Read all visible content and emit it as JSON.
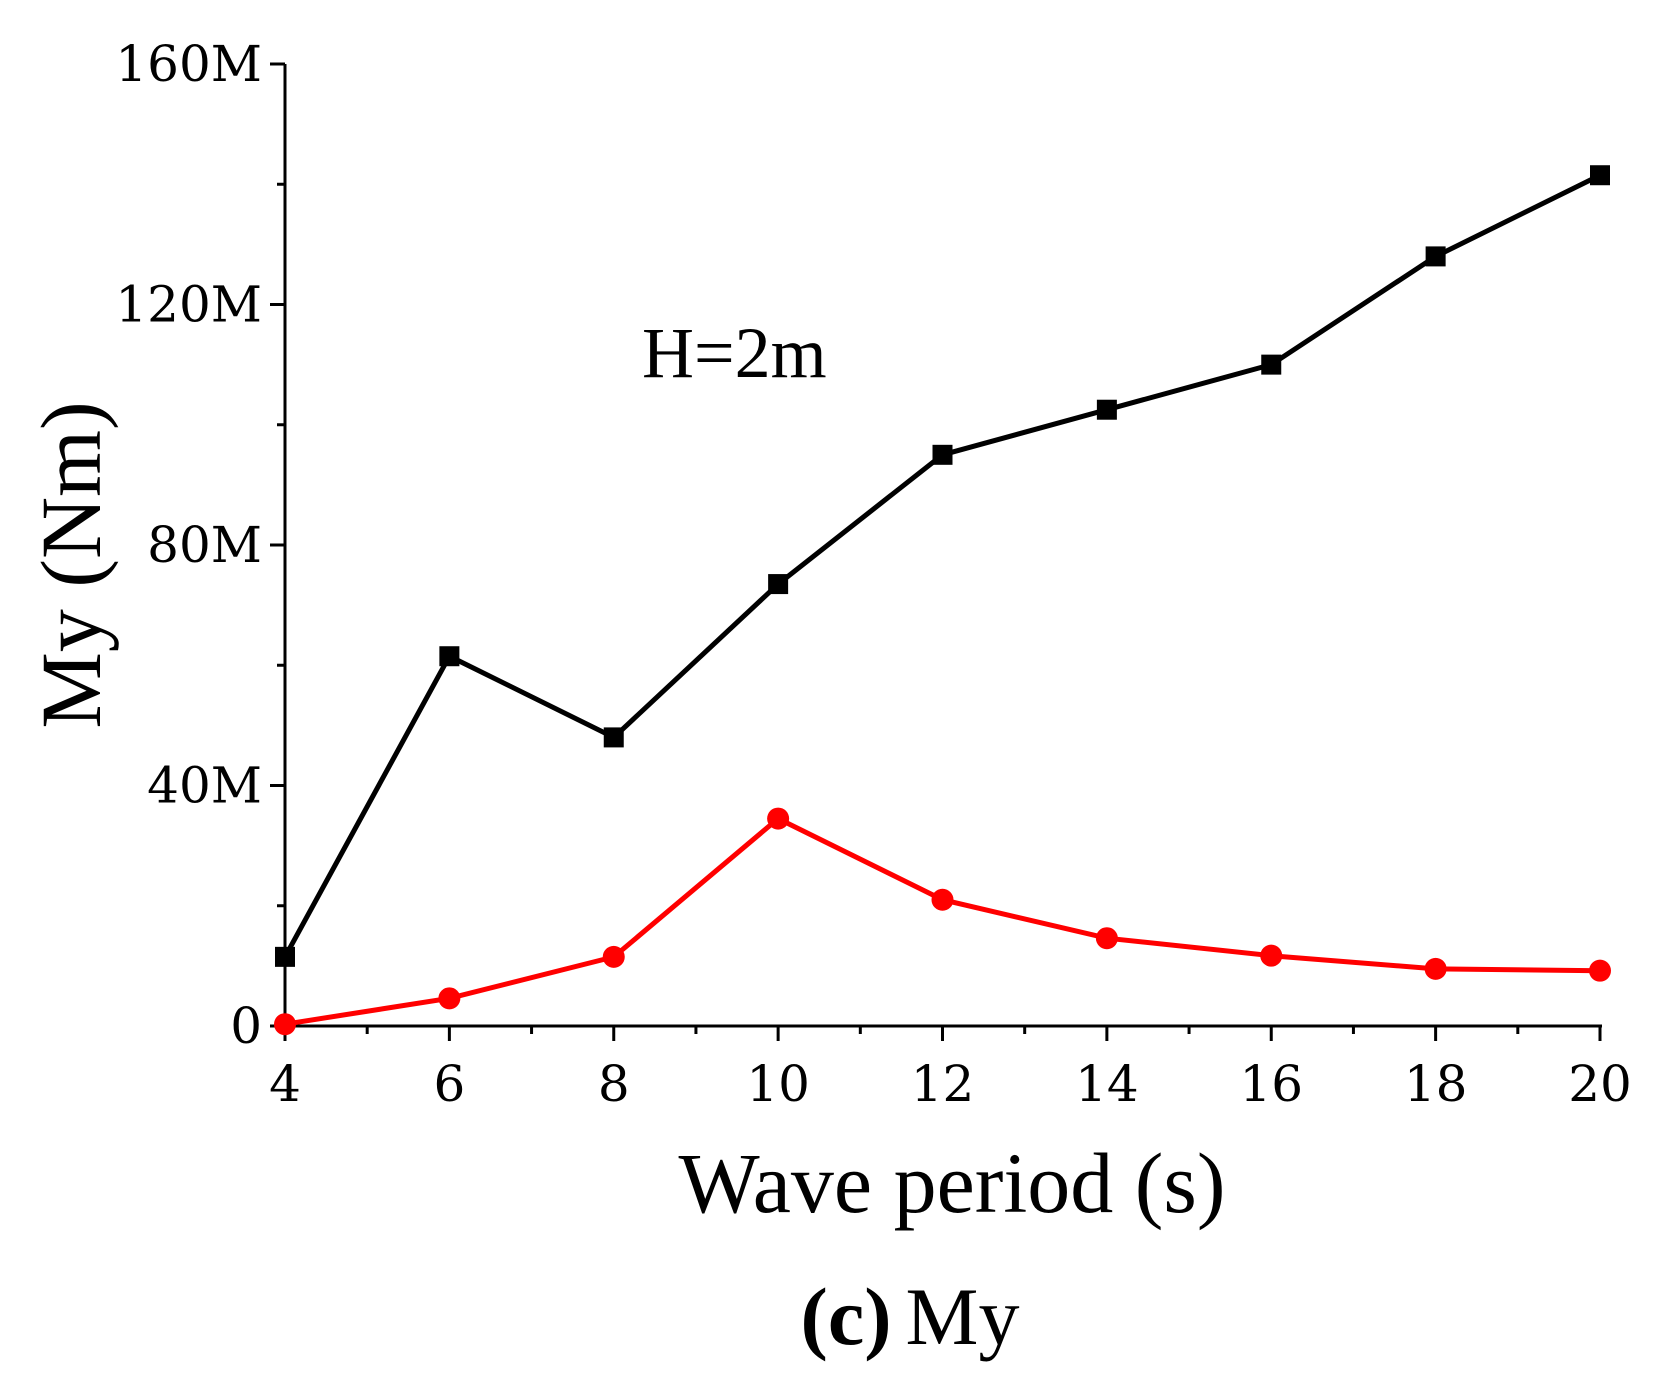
{
  "chart_data": {
    "type": "line",
    "title": "",
    "caption": {
      "letter": "(c)",
      "text": "My"
    },
    "xlabel": "Wave period (s)",
    "ylabel": "My (Nm)",
    "annotation": "H=2m",
    "xlim": [
      4,
      20
    ],
    "ylim": [
      0,
      160000000
    ],
    "x_ticks": [
      4,
      6,
      8,
      10,
      12,
      14,
      16,
      18,
      20
    ],
    "x_tick_labels": [
      "4",
      "6",
      "8",
      "10",
      "12",
      "14",
      "16",
      "18",
      "20"
    ],
    "y_ticks": [
      0,
      40000000,
      80000000,
      120000000,
      160000000
    ],
    "y_tick_labels": [
      "0",
      "40M",
      "80M",
      "120M",
      "160M"
    ],
    "x_minor_step": 1,
    "y_minor_step": 20000000,
    "grid": false,
    "x": [
      4,
      6,
      8,
      10,
      12,
      14,
      16,
      18,
      20
    ],
    "series": [
      {
        "name": "series-black-squares",
        "color": "#000000",
        "marker": "square",
        "values": [
          11500000,
          61500000,
          48000000,
          73500000,
          95000000,
          102500000,
          110000000,
          128000000,
          141500000
        ]
      },
      {
        "name": "series-red-circles",
        "color": "#ff0000",
        "marker": "circle",
        "values": [
          300000,
          4600000,
          11500000,
          34500000,
          21000000,
          14600000,
          11700000,
          9500000,
          9200000
        ]
      }
    ]
  }
}
